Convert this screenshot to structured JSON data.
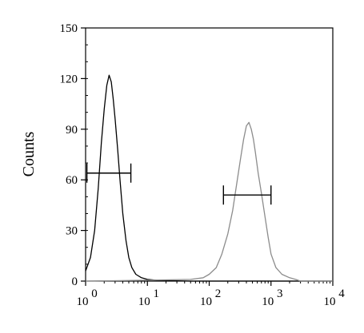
{
  "chart_data": {
    "type": "line",
    "title": "",
    "xlabel": "",
    "ylabel": "Counts",
    "x_scale": "log",
    "xlim": [
      1,
      10000
    ],
    "ylim": [
      0,
      150
    ],
    "grid": false,
    "legend": "none",
    "y_ticks": [
      0,
      30,
      60,
      90,
      120,
      150
    ],
    "y_tick_labels": [
      "0",
      "30",
      "60",
      "90",
      "120",
      "150"
    ],
    "x_ticks": [
      1,
      10,
      100,
      1000,
      10000
    ],
    "x_tick_labels": [
      {
        "base": "10",
        "exp": "0"
      },
      {
        "base": "10",
        "exp": "1"
      },
      {
        "base": "10",
        "exp": "2"
      },
      {
        "base": "10",
        "exp": "3"
      },
      {
        "base": "10",
        "exp": "4"
      }
    ],
    "series": [
      {
        "color": "#000000",
        "x": [
          1,
          1.2,
          1.4,
          1.6,
          1.8,
          2.0,
          2.2,
          2.4,
          2.6,
          2.8,
          3.0,
          3.3,
          3.6,
          4.0,
          4.5,
          5.0,
          5.6,
          6.5,
          8,
          10,
          14,
          20,
          30,
          50,
          80,
          150,
          300,
          1000,
          10000
        ],
        "y": [
          6,
          14,
          30,
          55,
          82,
          102,
          116,
          122,
          118,
          108,
          96,
          78,
          60,
          40,
          24,
          14,
          8,
          4,
          2,
          1,
          0.5,
          0.3,
          0.2,
          0,
          0,
          0,
          0,
          0,
          0
        ]
      },
      {
        "color": "#8c8c8c",
        "x": [
          1,
          10,
          50,
          80,
          100,
          130,
          160,
          200,
          240,
          280,
          320,
          360,
          400,
          440,
          480,
          520,
          560,
          620,
          700,
          800,
          900,
          1000,
          1200,
          1500,
          2000,
          2500,
          3000,
          10000
        ],
        "y": [
          0,
          0.5,
          1,
          2,
          4,
          8,
          16,
          28,
          42,
          58,
          72,
          84,
          92,
          94,
          90,
          84,
          76,
          64,
          52,
          38,
          26,
          16,
          8,
          4,
          2,
          1,
          0,
          0
        ]
      }
    ],
    "markers": [
      {
        "x_start": 1.05,
        "x_end": 5.4,
        "y": 64,
        "color": "#000000"
      },
      {
        "x_start": 170,
        "x_end": 1000,
        "y": 51,
        "color": "#000000"
      }
    ]
  }
}
